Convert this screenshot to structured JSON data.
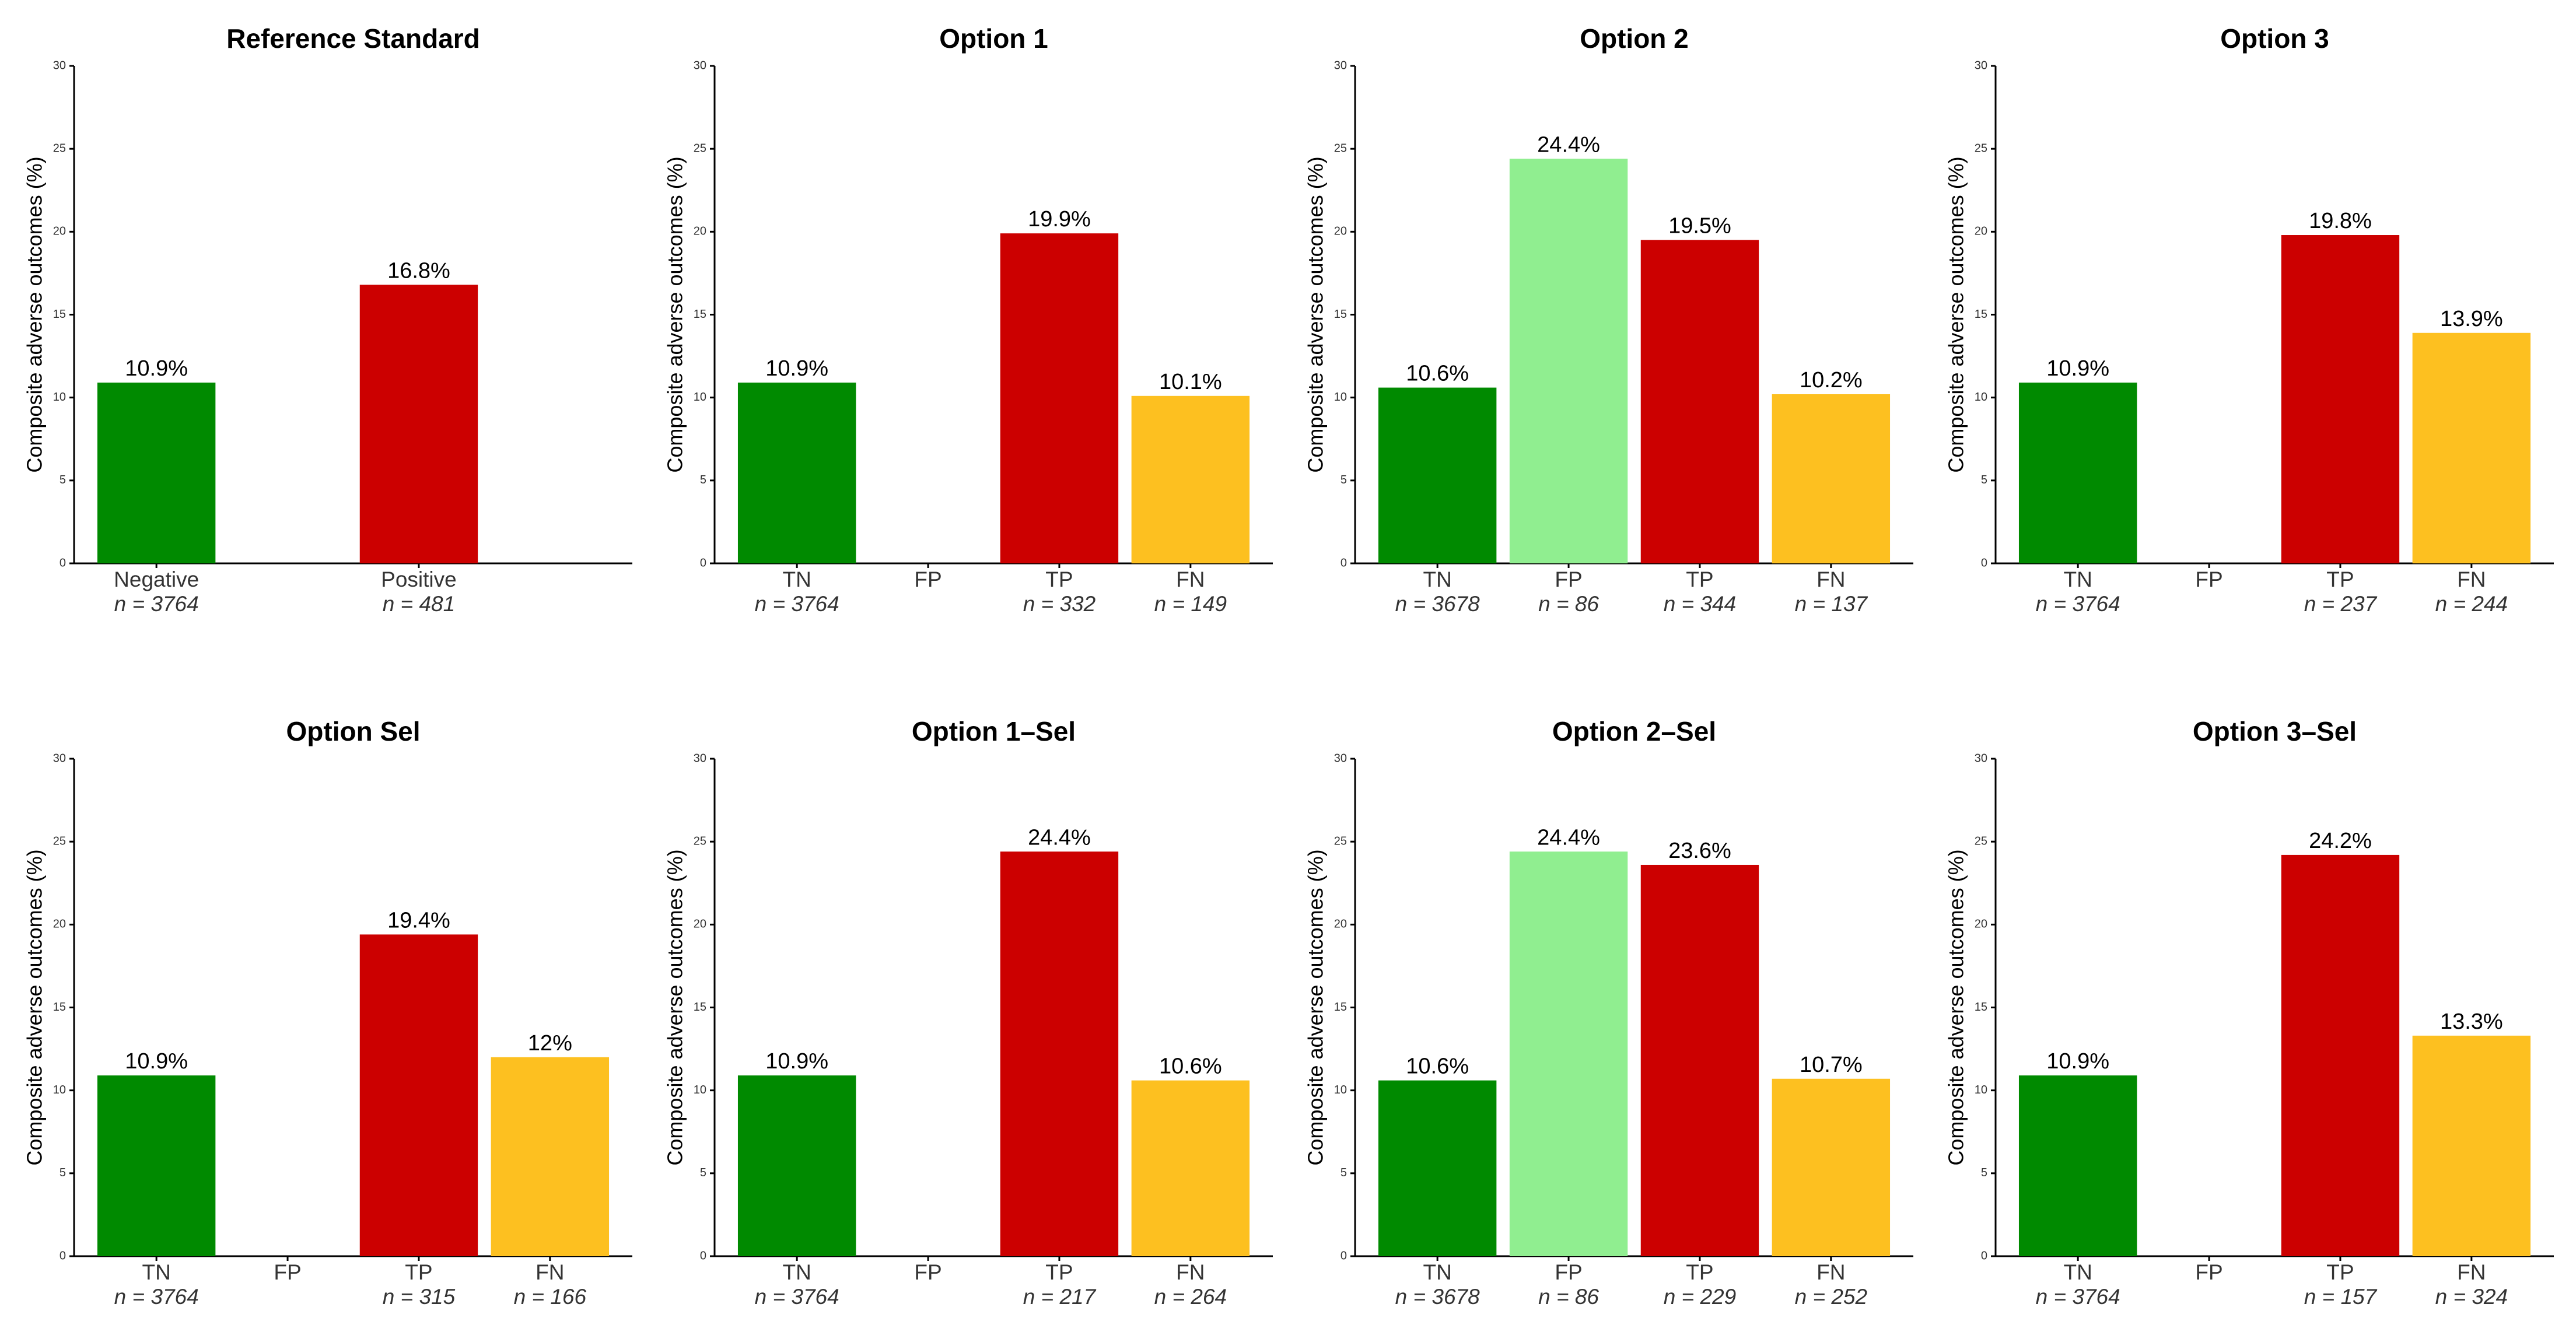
{
  "chart_data": [
    {
      "type": "bar",
      "title": "Reference Standard",
      "ylabel": "Composite adverse outcomes (%)",
      "categories": [
        "Negative",
        "Positive"
      ],
      "n_labels": [
        "n = 3764",
        "n = 481"
      ],
      "values": [
        10.9,
        16.8
      ],
      "value_labels": [
        "10.9%",
        "16.8%"
      ],
      "colors": [
        "#008a00",
        "#cc0000"
      ],
      "ylim": [
        0,
        30
      ],
      "yticks": [
        0,
        5,
        10,
        15,
        20,
        25,
        30
      ]
    },
    {
      "type": "bar",
      "title": "Option 1",
      "ylabel": "Composite adverse outcomes (%)",
      "categories": [
        "TN",
        "FP",
        "TP",
        "FN"
      ],
      "n_labels": [
        "n = 3764",
        null,
        "n = 332",
        "n = 149"
      ],
      "values": [
        10.9,
        null,
        19.9,
        10.1
      ],
      "value_labels": [
        "10.9%",
        null,
        "19.9%",
        "10.1%"
      ],
      "colors": [
        "#008a00",
        null,
        "#cc0000",
        "#fdc020"
      ],
      "ylim": [
        0,
        30
      ],
      "yticks": [
        0,
        5,
        10,
        15,
        20,
        25,
        30
      ]
    },
    {
      "type": "bar",
      "title": "Option 2",
      "ylabel": "Composite adverse outcomes (%)",
      "categories": [
        "TN",
        "FP",
        "TP",
        "FN"
      ],
      "n_labels": [
        "n = 3678",
        "n = 86",
        "n = 344",
        "n = 137"
      ],
      "values": [
        10.6,
        24.4,
        19.5,
        10.2
      ],
      "value_labels": [
        "10.6%",
        "24.4%",
        "19.5%",
        "10.2%"
      ],
      "colors": [
        "#008a00",
        "#90ee90",
        "#cc0000",
        "#fdc020"
      ],
      "ylim": [
        0,
        30
      ],
      "yticks": [
        0,
        5,
        10,
        15,
        20,
        25,
        30
      ]
    },
    {
      "type": "bar",
      "title": "Option 3",
      "ylabel": "Composite adverse outcomes (%)",
      "categories": [
        "TN",
        "FP",
        "TP",
        "FN"
      ],
      "n_labels": [
        "n = 3764",
        null,
        "n = 237",
        "n = 244"
      ],
      "values": [
        10.9,
        null,
        19.8,
        13.9
      ],
      "value_labels": [
        "10.9%",
        null,
        "19.8%",
        "13.9%"
      ],
      "colors": [
        "#008a00",
        null,
        "#cc0000",
        "#fdc020"
      ],
      "ylim": [
        0,
        30
      ],
      "yticks": [
        0,
        5,
        10,
        15,
        20,
        25,
        30
      ]
    },
    {
      "type": "bar",
      "title": "Option Sel",
      "ylabel": "Composite adverse outcomes (%)",
      "categories": [
        "TN",
        "FP",
        "TP",
        "FN"
      ],
      "n_labels": [
        "n = 3764",
        null,
        "n = 315",
        "n = 166"
      ],
      "values": [
        10.9,
        null,
        19.4,
        12
      ],
      "value_labels": [
        "10.9%",
        null,
        "19.4%",
        "12%"
      ],
      "colors": [
        "#008a00",
        null,
        "#cc0000",
        "#fdc020"
      ],
      "ylim": [
        0,
        30
      ],
      "yticks": [
        0,
        5,
        10,
        15,
        20,
        25,
        30
      ]
    },
    {
      "type": "bar",
      "title": "Option 1–Sel",
      "ylabel": "Composite adverse outcomes (%)",
      "categories": [
        "TN",
        "FP",
        "TP",
        "FN"
      ],
      "n_labels": [
        "n = 3764",
        null,
        "n = 217",
        "n = 264"
      ],
      "values": [
        10.9,
        null,
        24.4,
        10.6
      ],
      "value_labels": [
        "10.9%",
        null,
        "24.4%",
        "10.6%"
      ],
      "colors": [
        "#008a00",
        null,
        "#cc0000",
        "#fdc020"
      ],
      "ylim": [
        0,
        30
      ],
      "yticks": [
        0,
        5,
        10,
        15,
        20,
        25,
        30
      ]
    },
    {
      "type": "bar",
      "title": "Option 2–Sel",
      "ylabel": "Composite adverse outcomes (%)",
      "categories": [
        "TN",
        "FP",
        "TP",
        "FN"
      ],
      "n_labels": [
        "n = 3678",
        "n = 86",
        "n = 229",
        "n = 252"
      ],
      "values": [
        10.6,
        24.4,
        23.6,
        10.7
      ],
      "value_labels": [
        "10.6%",
        "24.4%",
        "23.6%",
        "10.7%"
      ],
      "colors": [
        "#008a00",
        "#90ee90",
        "#cc0000",
        "#fdc020"
      ],
      "ylim": [
        0,
        30
      ],
      "yticks": [
        0,
        5,
        10,
        15,
        20,
        25,
        30
      ]
    },
    {
      "type": "bar",
      "title": "Option 3–Sel",
      "ylabel": "Composite adverse outcomes (%)",
      "categories": [
        "TN",
        "FP",
        "TP",
        "FN"
      ],
      "n_labels": [
        "n = 3764",
        null,
        "n = 157",
        "n = 324"
      ],
      "values": [
        10.9,
        null,
        24.2,
        13.3
      ],
      "value_labels": [
        "10.9%",
        null,
        "24.2%",
        "13.3%"
      ],
      "colors": [
        "#008a00",
        null,
        "#cc0000",
        "#fdc020"
      ],
      "ylim": [
        0,
        30
      ],
      "yticks": [
        0,
        5,
        10,
        15,
        20,
        25,
        30
      ]
    }
  ]
}
